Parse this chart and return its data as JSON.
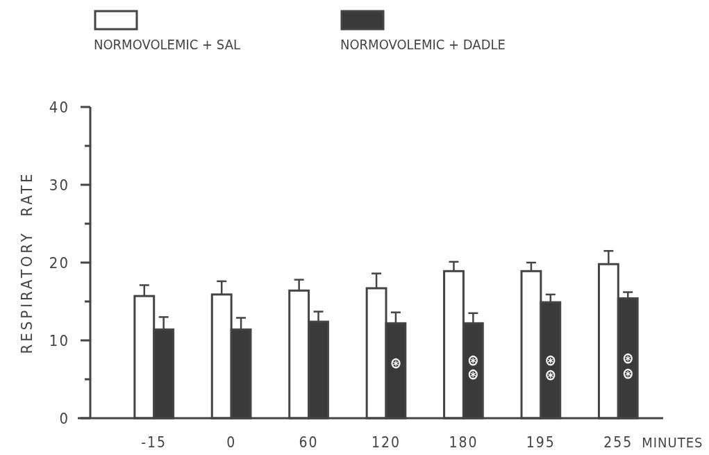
{
  "chart_data": {
    "type": "bar",
    "xlabel": "MINUTES",
    "ylabel": "RESPIRATORY  RATE",
    "categories": [
      "-15",
      "0",
      "60",
      "120",
      "180",
      "195",
      "255"
    ],
    "series": [
      {
        "name": "NORMOVOLEMIC + SAL",
        "color": "#ffffff",
        "values": [
          15.7,
          15.9,
          16.4,
          16.7,
          18.9,
          18.9,
          19.8
        ],
        "errors": [
          [
            15.7,
            17.1
          ],
          [
            15.9,
            17.6
          ],
          [
            16.4,
            17.8
          ],
          [
            16.7,
            18.6
          ],
          [
            18.9,
            20.1
          ],
          [
            18.9,
            20.0
          ],
          [
            19.8,
            21.5
          ]
        ]
      },
      {
        "name": "NORMOVOLEMIC + DADLE",
        "color": "#3a3a3a",
        "values": [
          11.4,
          11.4,
          12.4,
          12.2,
          12.2,
          14.9,
          15.4
        ],
        "errors": [
          [
            11.4,
            13.0
          ],
          [
            11.4,
            12.9
          ],
          [
            12.4,
            13.7
          ],
          [
            12.2,
            13.6
          ],
          [
            12.2,
            13.5
          ],
          [
            14.9,
            15.9
          ],
          [
            15.4,
            16.2
          ]
        ]
      }
    ],
    "ylim": [
      0,
      40
    ],
    "yticks": [
      0,
      {
        "value": 5,
        "label": null
      },
      10,
      {
        "value": 15,
        "label": null
      },
      20,
      {
        "value": 25,
        "label": null
      },
      30,
      {
        "value": 35,
        "label": null
      },
      40
    ],
    "annotations": [
      {
        "text": "⊛",
        "x": "120",
        "y": 7.1
      },
      {
        "text": "⊛",
        "x": "180",
        "y": 7.5
      },
      {
        "text": "⊛",
        "x": "180",
        "y": 5.7
      },
      {
        "text": "⊛",
        "x": "195",
        "y": 7.5
      },
      {
        "text": "⊛",
        "x": "195",
        "y": 5.6
      },
      {
        "text": "⊛",
        "x": "255",
        "y": 7.7
      },
      {
        "text": "⊛",
        "x": "255",
        "y": 5.8
      }
    ],
    "legend": "top left",
    "grid": false
  }
}
